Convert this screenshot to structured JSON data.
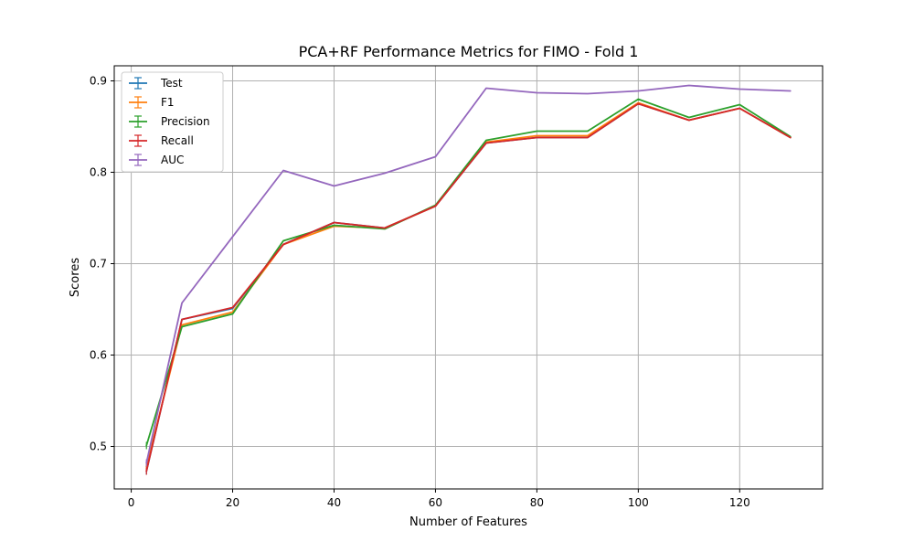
{
  "chart_data": {
    "type": "line",
    "title": "PCA+RF Performance Metrics for FIMO - Fold 1",
    "xlabel": "Number of Features",
    "ylabel": "Scores",
    "xlim": [
      -3.35,
      136.35
    ],
    "ylim": [
      0.4535,
      0.9165
    ],
    "x_ticks": [
      0,
      20,
      40,
      60,
      80,
      100,
      120
    ],
    "y_ticks": [
      0.5,
      0.6,
      0.7,
      0.8,
      0.9
    ],
    "x_tick_labels": [
      "0",
      "20",
      "40",
      "60",
      "80",
      "100",
      "120"
    ],
    "y_tick_labels": [
      "0.5",
      "0.6",
      "0.7",
      "0.8",
      "0.9"
    ],
    "grid": true,
    "legend_location": "upper-left",
    "x": [
      3,
      10,
      20,
      30,
      40,
      50,
      60,
      70,
      80,
      90,
      100,
      110,
      120,
      130
    ],
    "series": [
      {
        "name": "Test",
        "color": "#1f77b4",
        "values": [
          0.473,
          0.639,
          0.651,
          0.721,
          0.745,
          0.739,
          0.763,
          0.832,
          0.838,
          0.838,
          0.875,
          0.857,
          0.87,
          0.838
        ]
      },
      {
        "name": "F1",
        "color": "#ff7f0e",
        "values": [
          0.478,
          0.633,
          0.647,
          0.721,
          0.741,
          0.739,
          0.763,
          0.833,
          0.84,
          0.84,
          0.876,
          0.857,
          0.87,
          0.838
        ]
      },
      {
        "name": "Precision",
        "color": "#2ca02c",
        "values": [
          0.501,
          0.631,
          0.645,
          0.725,
          0.742,
          0.738,
          0.764,
          0.835,
          0.845,
          0.845,
          0.88,
          0.86,
          0.874,
          0.839
        ]
      },
      {
        "name": "Recall",
        "color": "#d62728",
        "values": [
          0.473,
          0.639,
          0.652,
          0.721,
          0.745,
          0.739,
          0.763,
          0.832,
          0.838,
          0.838,
          0.875,
          0.857,
          0.87,
          0.838
        ]
      },
      {
        "name": "AUC",
        "color": "#9467bd",
        "values": [
          0.482,
          0.657,
          null,
          0.802,
          0.785,
          0.799,
          0.817,
          0.892,
          0.887,
          0.886,
          0.889,
          0.895,
          0.891,
          0.889
        ]
      }
    ]
  }
}
